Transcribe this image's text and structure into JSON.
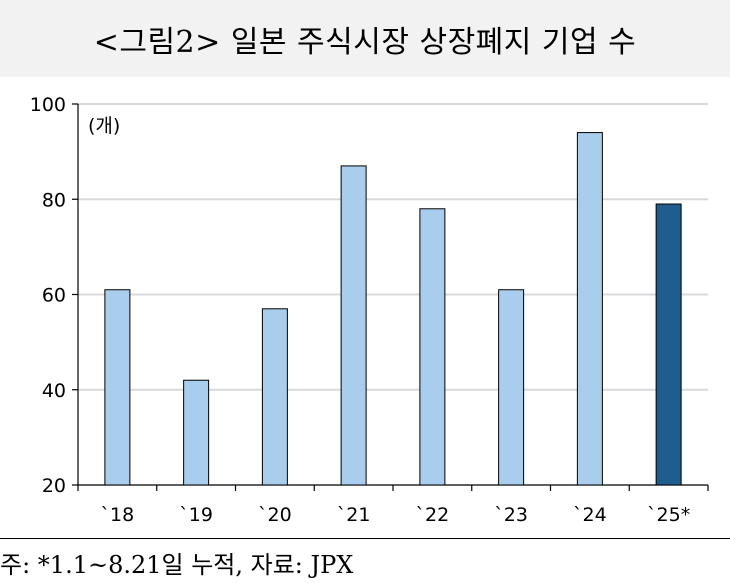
{
  "title": "<그림2> 일본 주식시장 상장폐지 기업 수",
  "footnote": "주: *1.1~8.21일 누적, 자료: JPX",
  "chart_data": {
    "type": "bar",
    "categories": [
      "`18",
      "`19",
      "`20",
      "`21",
      "`22",
      "`23",
      "`24",
      "`25*"
    ],
    "values": [
      61,
      42,
      57,
      87,
      78,
      61,
      94,
      79
    ],
    "unit_label": "(개)",
    "ylim": [
      20,
      100
    ],
    "yticks": [
      20,
      40,
      60,
      80,
      100
    ],
    "grid": true,
    "colors": {
      "default_bar": "#a9cdec",
      "highlight_bar": "#1f5d8e",
      "bar_stroke": "#000000",
      "grid": "#d9d9d9"
    },
    "highlight_index": 7
  }
}
